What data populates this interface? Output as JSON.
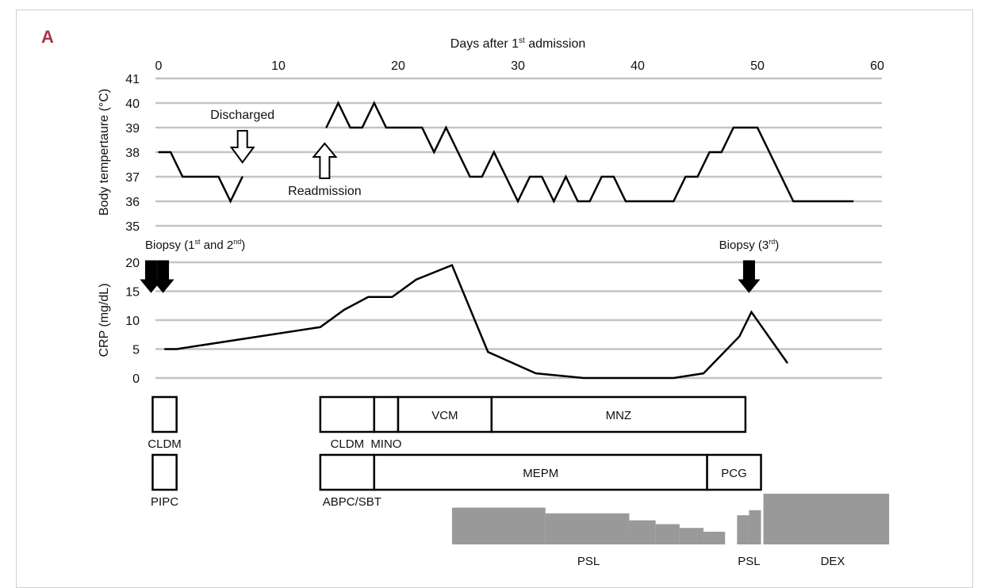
{
  "panel_label": "A",
  "chart_data": {
    "type": "line",
    "x_axis": {
      "label_main": "Days after 1",
      "label_sup": "st",
      "label_tail": " admission",
      "range": [
        0,
        60
      ],
      "ticks": [
        0,
        10,
        20,
        30,
        40,
        50,
        60
      ]
    },
    "temperature": {
      "ylabel": "Body tempertaure (°C)",
      "ylim": [
        35,
        41
      ],
      "yticks": [
        35,
        36,
        37,
        38,
        39,
        40,
        41
      ],
      "segments": [
        [
          [
            0,
            38
          ],
          [
            1,
            38
          ],
          [
            2,
            37
          ],
          [
            5,
            37
          ],
          [
            6,
            36
          ],
          [
            7,
            37
          ]
        ],
        [
          [
            14,
            39
          ],
          [
            15,
            40
          ],
          [
            16,
            39
          ],
          [
            17,
            39
          ],
          [
            18,
            40
          ],
          [
            19,
            39
          ],
          [
            22,
            39
          ],
          [
            23,
            38
          ],
          [
            24,
            39
          ],
          [
            26,
            37
          ],
          [
            27,
            37
          ],
          [
            28,
            38
          ],
          [
            30,
            36
          ],
          [
            31,
            37
          ],
          [
            32,
            37
          ],
          [
            33,
            36
          ],
          [
            34,
            37
          ],
          [
            35,
            36
          ],
          [
            36,
            36
          ],
          [
            37,
            37
          ],
          [
            38,
            37
          ],
          [
            39,
            36
          ],
          [
            43,
            36
          ],
          [
            44,
            37
          ],
          [
            45,
            37
          ],
          [
            46,
            38
          ],
          [
            47,
            38
          ],
          [
            48,
            39
          ],
          [
            50,
            39
          ],
          [
            53,
            36
          ],
          [
            58,
            36
          ]
        ]
      ],
      "annotations": [
        {
          "id": "discharged",
          "text": "Discharged",
          "day": 7
        },
        {
          "id": "readmission",
          "text": "Readmission",
          "day": 14
        }
      ]
    },
    "crp": {
      "ylabel": "CRP (mg/dL)",
      "ylim": [
        0,
        20
      ],
      "yticks": [
        0,
        5,
        10,
        15,
        20
      ],
      "points": [
        [
          0.5,
          5
        ],
        [
          1.5,
          5
        ],
        [
          13.5,
          8.8
        ],
        [
          15.5,
          11.8
        ],
        [
          17.5,
          14
        ],
        [
          19.5,
          14
        ],
        [
          21.5,
          17
        ],
        [
          24.5,
          19.5
        ],
        [
          27.5,
          4.5
        ],
        [
          31.5,
          0.8
        ],
        [
          35.5,
          0
        ],
        [
          43,
          0
        ],
        [
          45.5,
          0.8
        ],
        [
          48.5,
          7.2
        ],
        [
          49.5,
          11.4
        ],
        [
          52.5,
          2.6
        ]
      ],
      "biopsies": [
        {
          "id": "biopsy-1-2",
          "label_main": "Biopsy (1",
          "label_sup1": "st",
          "label_mid": " and 2",
          "label_sup2": "nd",
          "label_tail": ")",
          "days": [
            -0.5,
            0.5
          ]
        },
        {
          "id": "biopsy-3",
          "label_main": "Biopsy (3",
          "label_sup1": "rd",
          "label_tail": ")",
          "days": [
            49.5
          ]
        }
      ]
    },
    "treatments_row1": [
      {
        "label": "CLDM",
        "start": -0.5,
        "end": 1.5,
        "label_pos": "below"
      },
      {
        "label": "CLDM",
        "start": 13.5,
        "end": 18,
        "label_pos": "below"
      },
      {
        "label": "MINO",
        "start": 18,
        "end": 20,
        "label_pos": "below"
      },
      {
        "label": "VCM",
        "start": 20,
        "end": 27.8,
        "label_pos": "inside"
      },
      {
        "label": "MNZ",
        "start": 27.8,
        "end": 49,
        "label_pos": "inside"
      }
    ],
    "treatments_row2": [
      {
        "label": "PIPC",
        "start": -0.5,
        "end": 1.5,
        "label_pos": "below"
      },
      {
        "label": "ABPC/SBT",
        "start": 13.5,
        "end": 18,
        "label_pos": "below"
      },
      {
        "label": "MEPM",
        "start": 18,
        "end": 45.8,
        "label_pos": "inside"
      },
      {
        "label": "PCG",
        "start": 45.8,
        "end": 50.3,
        "label_pos": "inside"
      }
    ],
    "steroids": [
      {
        "label": "PSL",
        "steps": [
          [
            24.5,
            29
          ],
          [
            32.3,
            24.5
          ],
          [
            39.3,
            19
          ],
          [
            41.5,
            16
          ],
          [
            43.5,
            13
          ],
          [
            45.5,
            10
          ],
          [
            47.3,
            0
          ]
        ]
      },
      {
        "label": "PSL",
        "steps": [
          [
            48.3,
            23
          ],
          [
            49.3,
            27
          ],
          [
            50.3,
            0
          ]
        ]
      },
      {
        "label": "DEX",
        "steps": [
          [
            50.5,
            40
          ],
          [
            61,
            0
          ]
        ]
      }
    ],
    "steroid_full_scale": 40
  }
}
